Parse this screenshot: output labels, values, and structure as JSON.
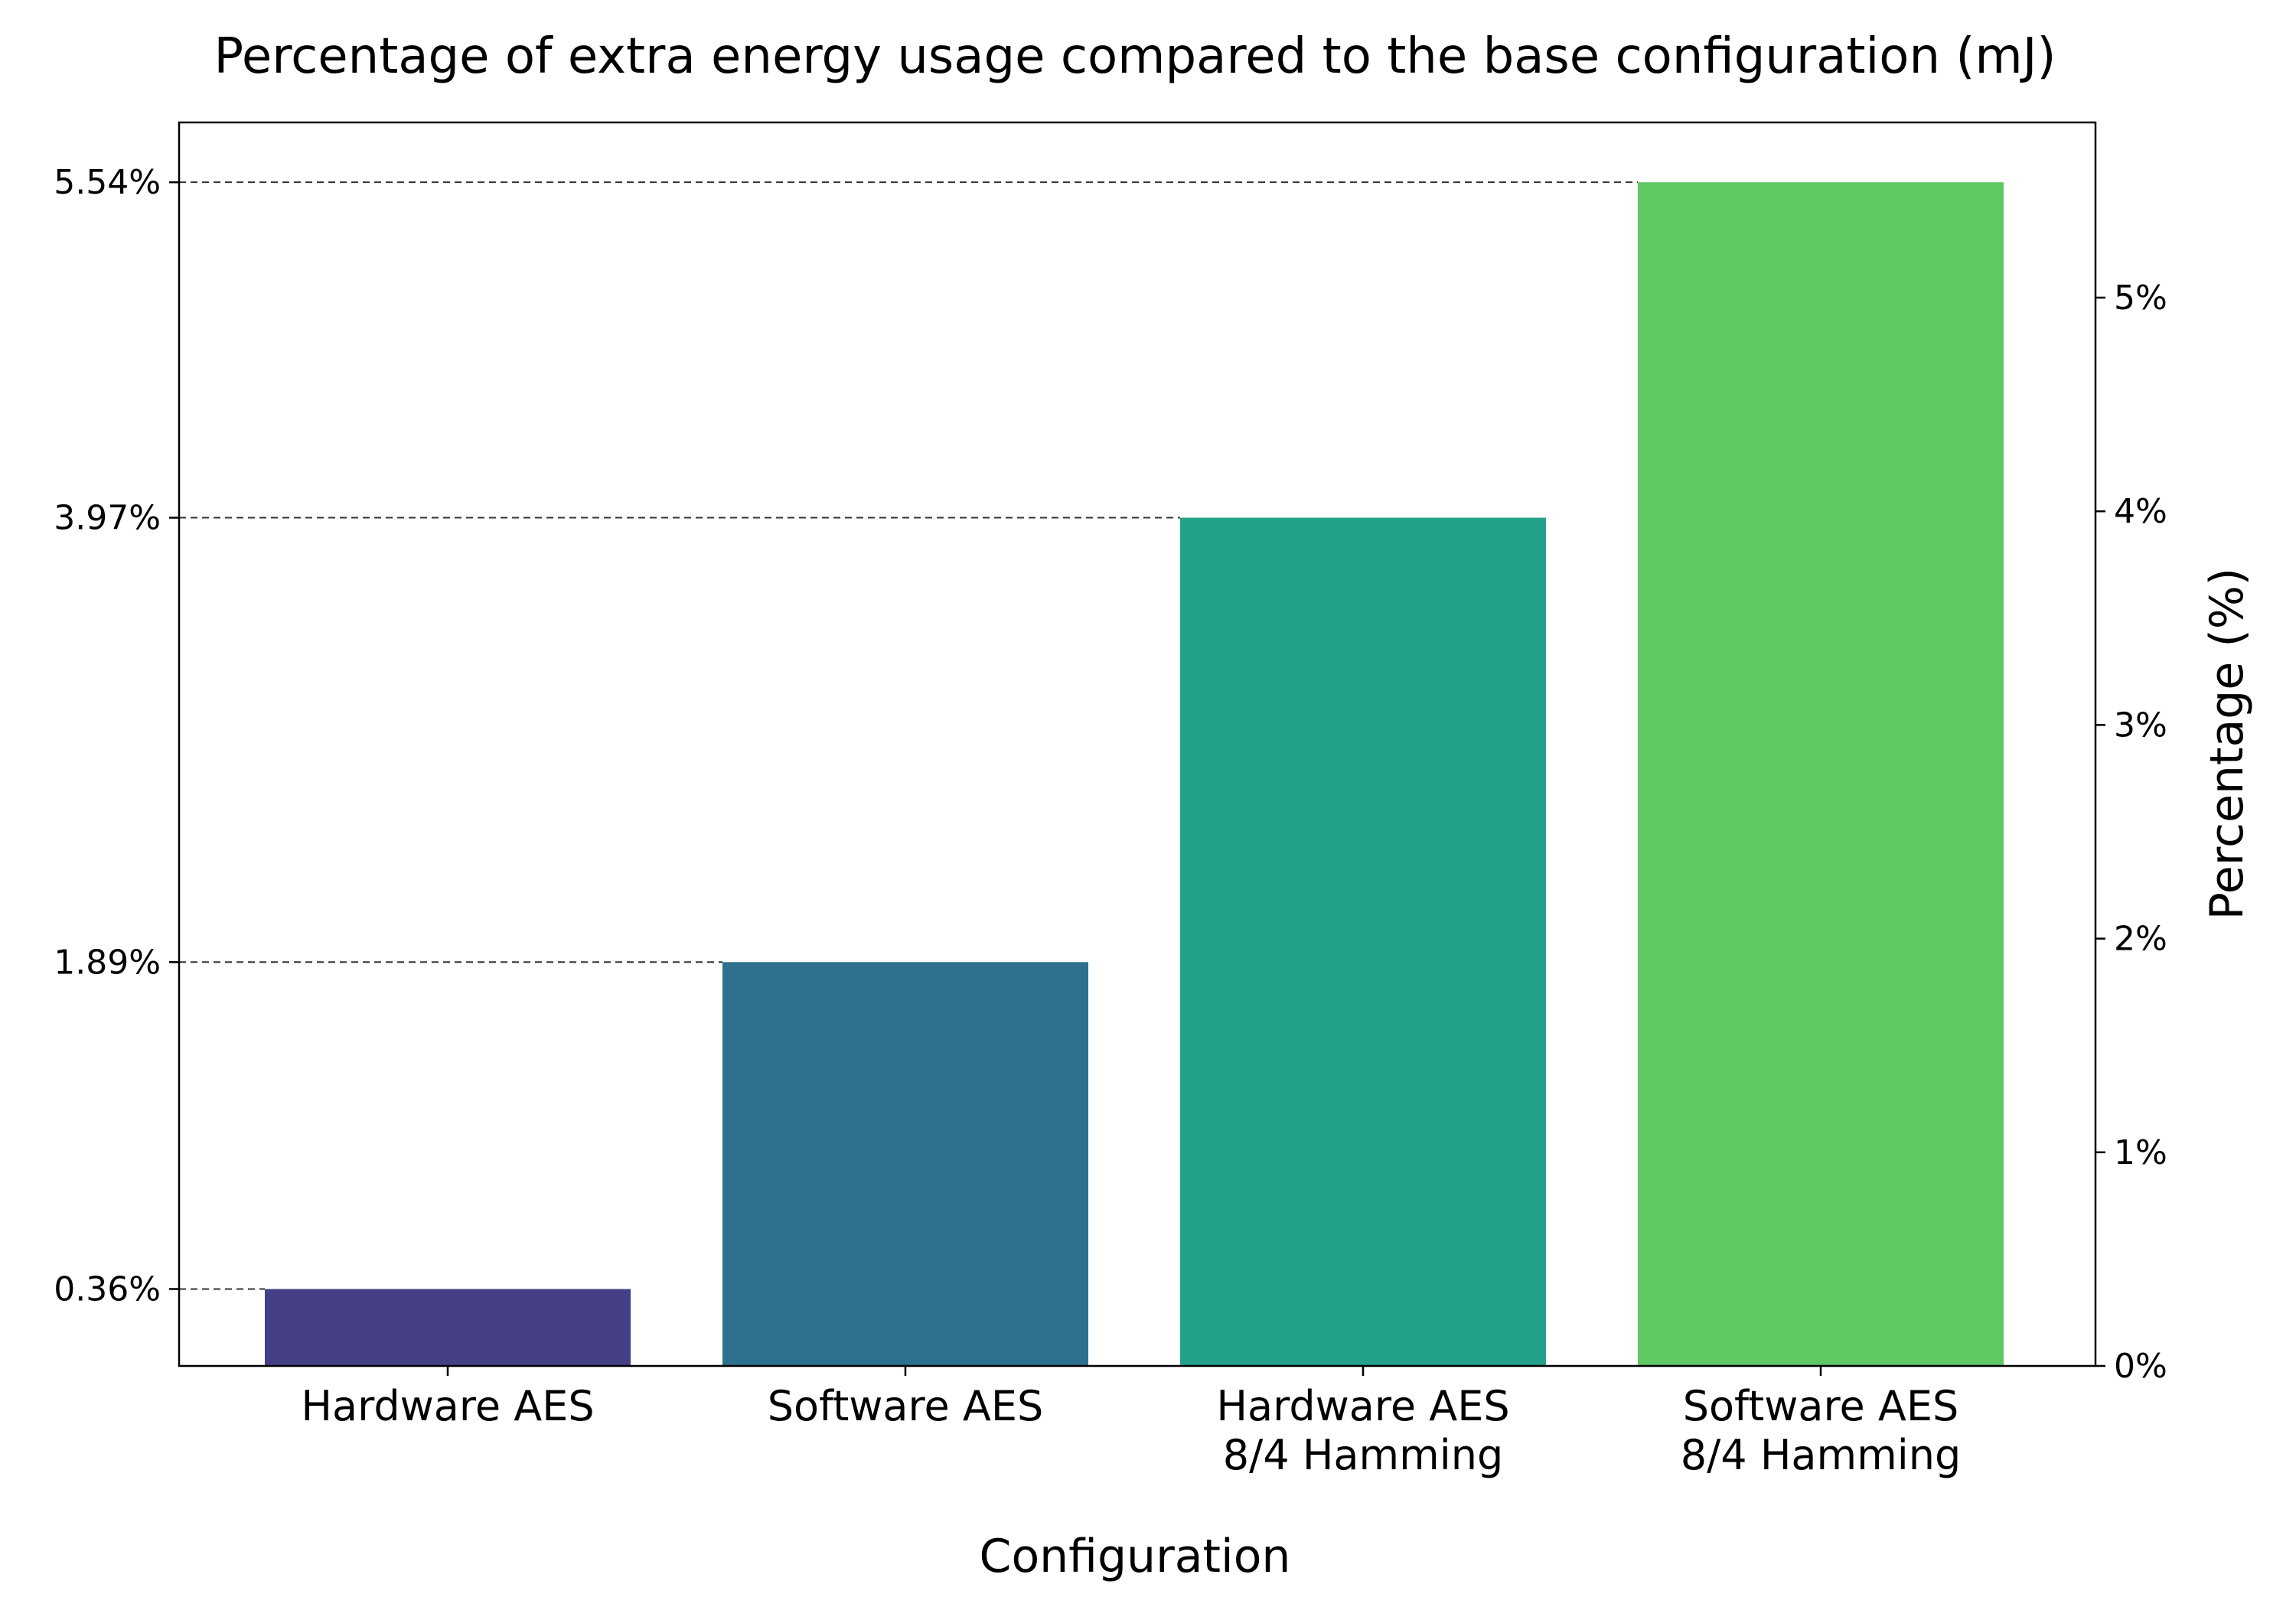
{
  "chart_data": {
    "type": "bar",
    "title": "Percentage of extra energy usage compared to the base configuration (mJ)",
    "xlabel": "Configuration",
    "ylabel_right": "Percentage (%)",
    "categories": [
      [
        "Hardware AES"
      ],
      [
        "Software AES"
      ],
      [
        "Hardware AES",
        "8/4 Hamming"
      ],
      [
        "Software AES",
        "8/4 Hamming"
      ]
    ],
    "values": [
      0.36,
      1.89,
      3.97,
      5.54
    ],
    "value_labels": [
      "0.36%",
      "1.89%",
      "3.97%",
      "5.54%"
    ],
    "colors": [
      "#453f87",
      "#2d718e",
      "#21a289",
      "#5ec863"
    ],
    "ylim": [
      0,
      5.82
    ],
    "right_ticks": [
      0,
      1,
      2,
      3,
      4,
      5
    ],
    "right_tick_labels": [
      "0%",
      "1%",
      "2%",
      "3%",
      "4%",
      "5%"
    ],
    "reference_lines": "dashed",
    "grid": false
  }
}
